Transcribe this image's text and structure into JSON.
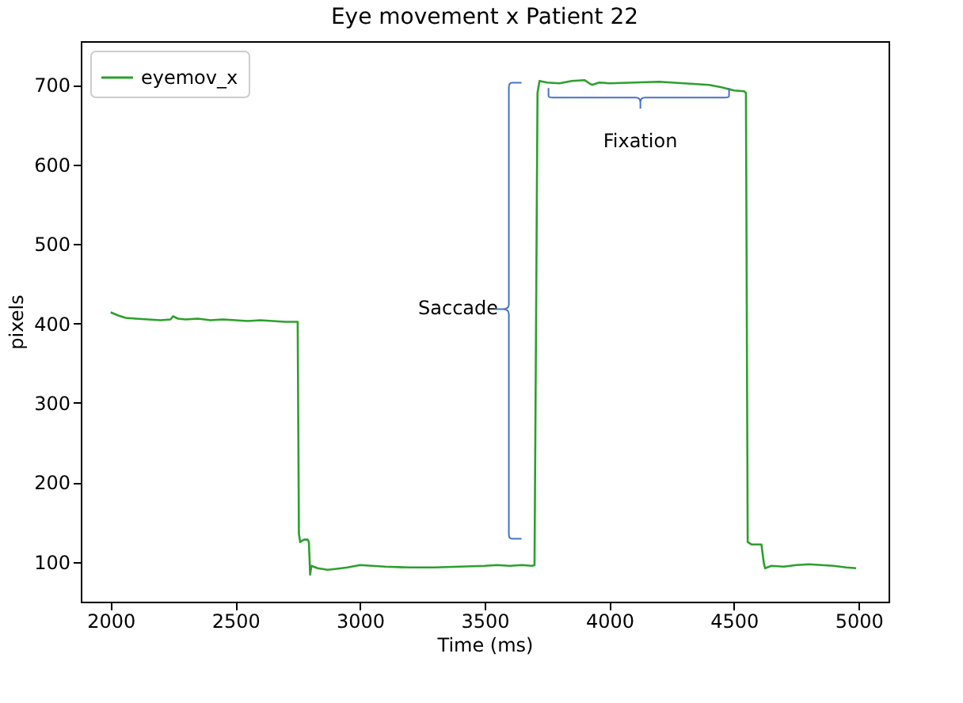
{
  "chart_data": {
    "type": "line",
    "title": "Eye movement x Patient 22",
    "xlabel": "Time (ms)",
    "ylabel": "pixels",
    "x": [
      2000,
      2030,
      2060,
      2100,
      2150,
      2200,
      2240,
      2250,
      2270,
      2300,
      2350,
      2400,
      2450,
      2500,
      2550,
      2600,
      2650,
      2700,
      2750,
      2755,
      2760,
      2775,
      2790,
      2795,
      2800,
      2805,
      2830,
      2870,
      2900,
      2950,
      3000,
      3050,
      3100,
      3200,
      3300,
      3400,
      3500,
      3550,
      3600,
      3650,
      3690,
      3700,
      3712,
      3720,
      3750,
      3800,
      3850,
      3900,
      3930,
      3960,
      4000,
      4100,
      4200,
      4300,
      4400,
      4450,
      4500,
      4540,
      4548,
      4555,
      4570,
      4610,
      4620,
      4625,
      4650,
      4700,
      4750,
      4800,
      4850,
      4900,
      4950,
      4990
    ],
    "series": [
      {
        "name": "eyemov_x",
        "color": "#2ca02c",
        "values": [
          414,
          410,
          407,
          406,
          405,
          404,
          405,
          409,
          406,
          405,
          406,
          404,
          405,
          404,
          403,
          404,
          403,
          402,
          402,
          135,
          125,
          128,
          128,
          125,
          84,
          95,
          92,
          90,
          91,
          93,
          96,
          95,
          94,
          93,
          93,
          94,
          95,
          96,
          95,
          96,
          95,
          96,
          690,
          705,
          703,
          702,
          705,
          706,
          700,
          703,
          702,
          703,
          704,
          702,
          700,
          697,
          693,
          692,
          690,
          125,
          122,
          122,
          98,
          92,
          95,
          94,
          96,
          97,
          96,
          95,
          93,
          92
        ]
      }
    ],
    "xlim": [
      1880,
      5120
    ],
    "ylim": [
      50,
      755
    ],
    "xticks": [
      2000,
      2500,
      3000,
      3500,
      4000,
      4500,
      5000
    ],
    "yticks": [
      100,
      200,
      300,
      400,
      500,
      600,
      700
    ],
    "legend": "top left",
    "grid": false,
    "annotations": [
      {
        "text": "Saccade",
        "x": 3705,
        "y": 410
      },
      {
        "text": "Fixation",
        "x": 4150,
        "y": 704
      }
    ]
  }
}
